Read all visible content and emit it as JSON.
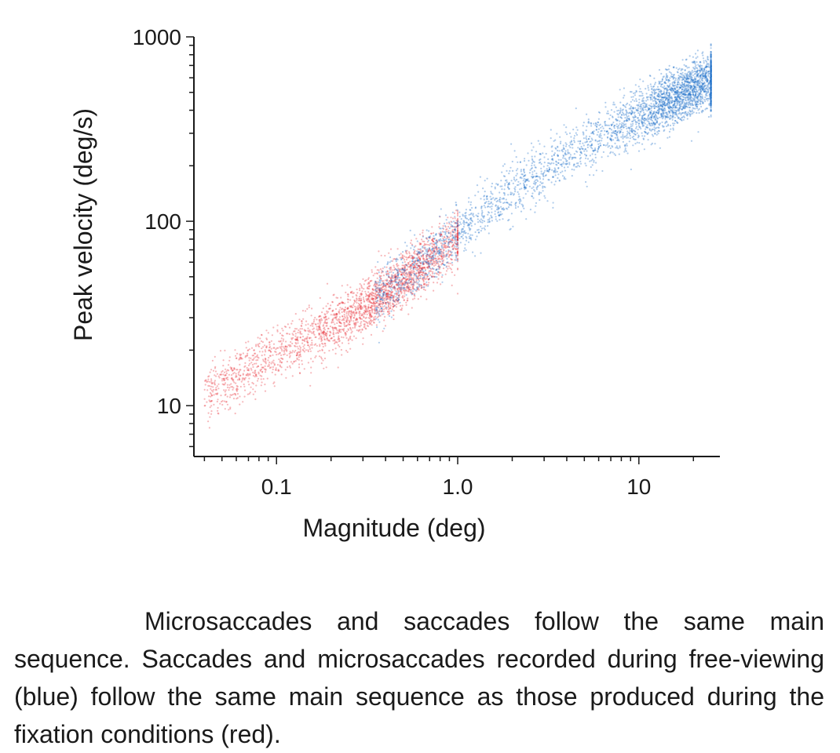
{
  "chart_data": {
    "type": "scatter",
    "title": "",
    "xlabel": "Magnitude (deg)",
    "ylabel": "Peak velocity (deg/s)",
    "xscale": "log",
    "yscale": "log",
    "xlim": [
      0.035,
      28
    ],
    "ylim": [
      5.3,
      1000
    ],
    "x_ticks": [
      {
        "value": 0.1,
        "label": "0.1"
      },
      {
        "value": 1.0,
        "label": "1.0"
      },
      {
        "value": 10,
        "label": "10"
      }
    ],
    "y_ticks": [
      {
        "value": 10,
        "label": "10"
      },
      {
        "value": 100,
        "label": "100"
      },
      {
        "value": 1000,
        "label": "1000"
      }
    ],
    "grid": false,
    "legend": "none",
    "series": [
      {
        "color": "#e8323a",
        "condition": "fixation (red)",
        "x_range": [
          0.04,
          1.0
        ],
        "y_range": [
          10,
          90
        ],
        "density_peak": {
          "x": 0.45,
          "y": 45
        },
        "trend": [
          {
            "x": 0.05,
            "y": 13
          },
          {
            "x": 0.1,
            "y": 19
          },
          {
            "x": 0.2,
            "y": 27
          },
          {
            "x": 0.3,
            "y": 34
          },
          {
            "x": 0.5,
            "y": 48
          },
          {
            "x": 0.8,
            "y": 68
          }
        ]
      },
      {
        "color": "#1a6cc8",
        "condition": "free-viewing (blue)",
        "x_range": [
          0.35,
          25
        ],
        "y_range": [
          25,
          650
        ],
        "density_peak": {
          "x": 18,
          "y": 500
        },
        "trend": [
          {
            "x": 0.5,
            "y": 50
          },
          {
            "x": 1.0,
            "y": 85
          },
          {
            "x": 2.0,
            "y": 145
          },
          {
            "x": 4.0,
            "y": 225
          },
          {
            "x": 8.0,
            "y": 330
          },
          {
            "x": 18.0,
            "y": 500
          }
        ]
      }
    ]
  },
  "caption": {
    "text": "Microsaccades and saccades follow the same main sequence. Saccades and microsaccades recorded during free-viewing (blue) follow the same main sequence as those produced during the fixation conditions (red)."
  }
}
